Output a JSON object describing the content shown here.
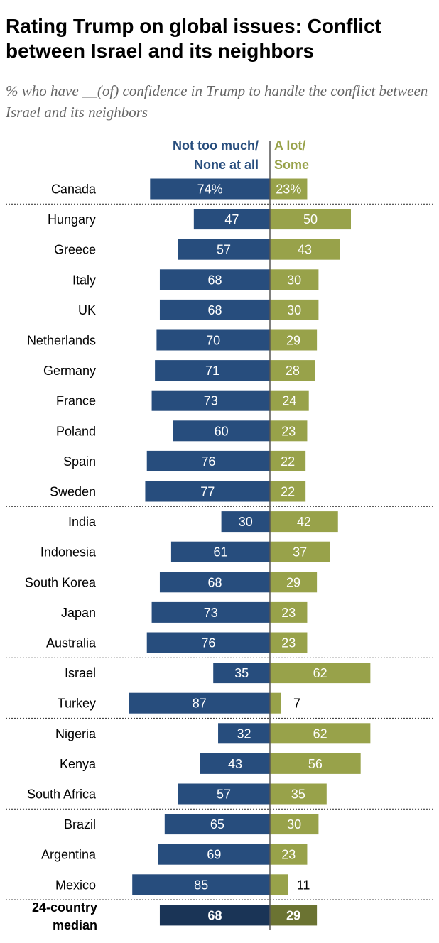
{
  "title": "Rating Trump on global issues: Conflict between Israel and its neighbors",
  "subtitle": "% who have __(of) confidence in Trump to handle the conflict between Israel and its neighbors",
  "colors": {
    "negative": "#274d7d",
    "positive": "#98a24a",
    "negative_median": "#1a3456",
    "positive_median": "#6b7332",
    "axis": "#555555",
    "text": "#000000"
  },
  "chart_data": {
    "type": "bar",
    "subtype": "diverging-horizontal",
    "title": "Rating Trump on global issues: Conflict between Israel and its neighbors",
    "subtitle": "% who have __(of) confidence in Trump to handle the conflict between Israel and its neighbors",
    "legend": {
      "negative": [
        "Not too much/",
        "None at all"
      ],
      "positive": [
        "A lot/",
        "Some"
      ]
    },
    "categories": [
      "Canada",
      "Hungary",
      "Greece",
      "Italy",
      "UK",
      "Netherlands",
      "Germany",
      "France",
      "Poland",
      "Spain",
      "Sweden",
      "India",
      "Indonesia",
      "South Korea",
      "Japan",
      "Australia",
      "Israel",
      "Turkey",
      "Nigeria",
      "Kenya",
      "South Africa",
      "Brazil",
      "Argentina",
      "Mexico"
    ],
    "series": [
      {
        "name": "Not too much/None at all",
        "values": [
          74,
          47,
          57,
          68,
          68,
          70,
          71,
          73,
          60,
          76,
          77,
          30,
          61,
          68,
          73,
          76,
          35,
          87,
          32,
          43,
          57,
          65,
          69,
          85
        ]
      },
      {
        "name": "A lot/Some",
        "values": [
          23,
          50,
          43,
          30,
          30,
          29,
          28,
          24,
          23,
          22,
          22,
          42,
          37,
          29,
          23,
          23,
          62,
          7,
          62,
          56,
          35,
          30,
          23,
          11
        ]
      }
    ],
    "first_row_labels": [
      "74%",
      "23%"
    ],
    "group_breaks_after": [
      "Canada",
      "Sweden",
      "Australia",
      "Turkey",
      "South Africa",
      "Mexico"
    ],
    "median": {
      "label": [
        "24-country",
        "median"
      ],
      "negative": 68,
      "positive": 29
    }
  }
}
